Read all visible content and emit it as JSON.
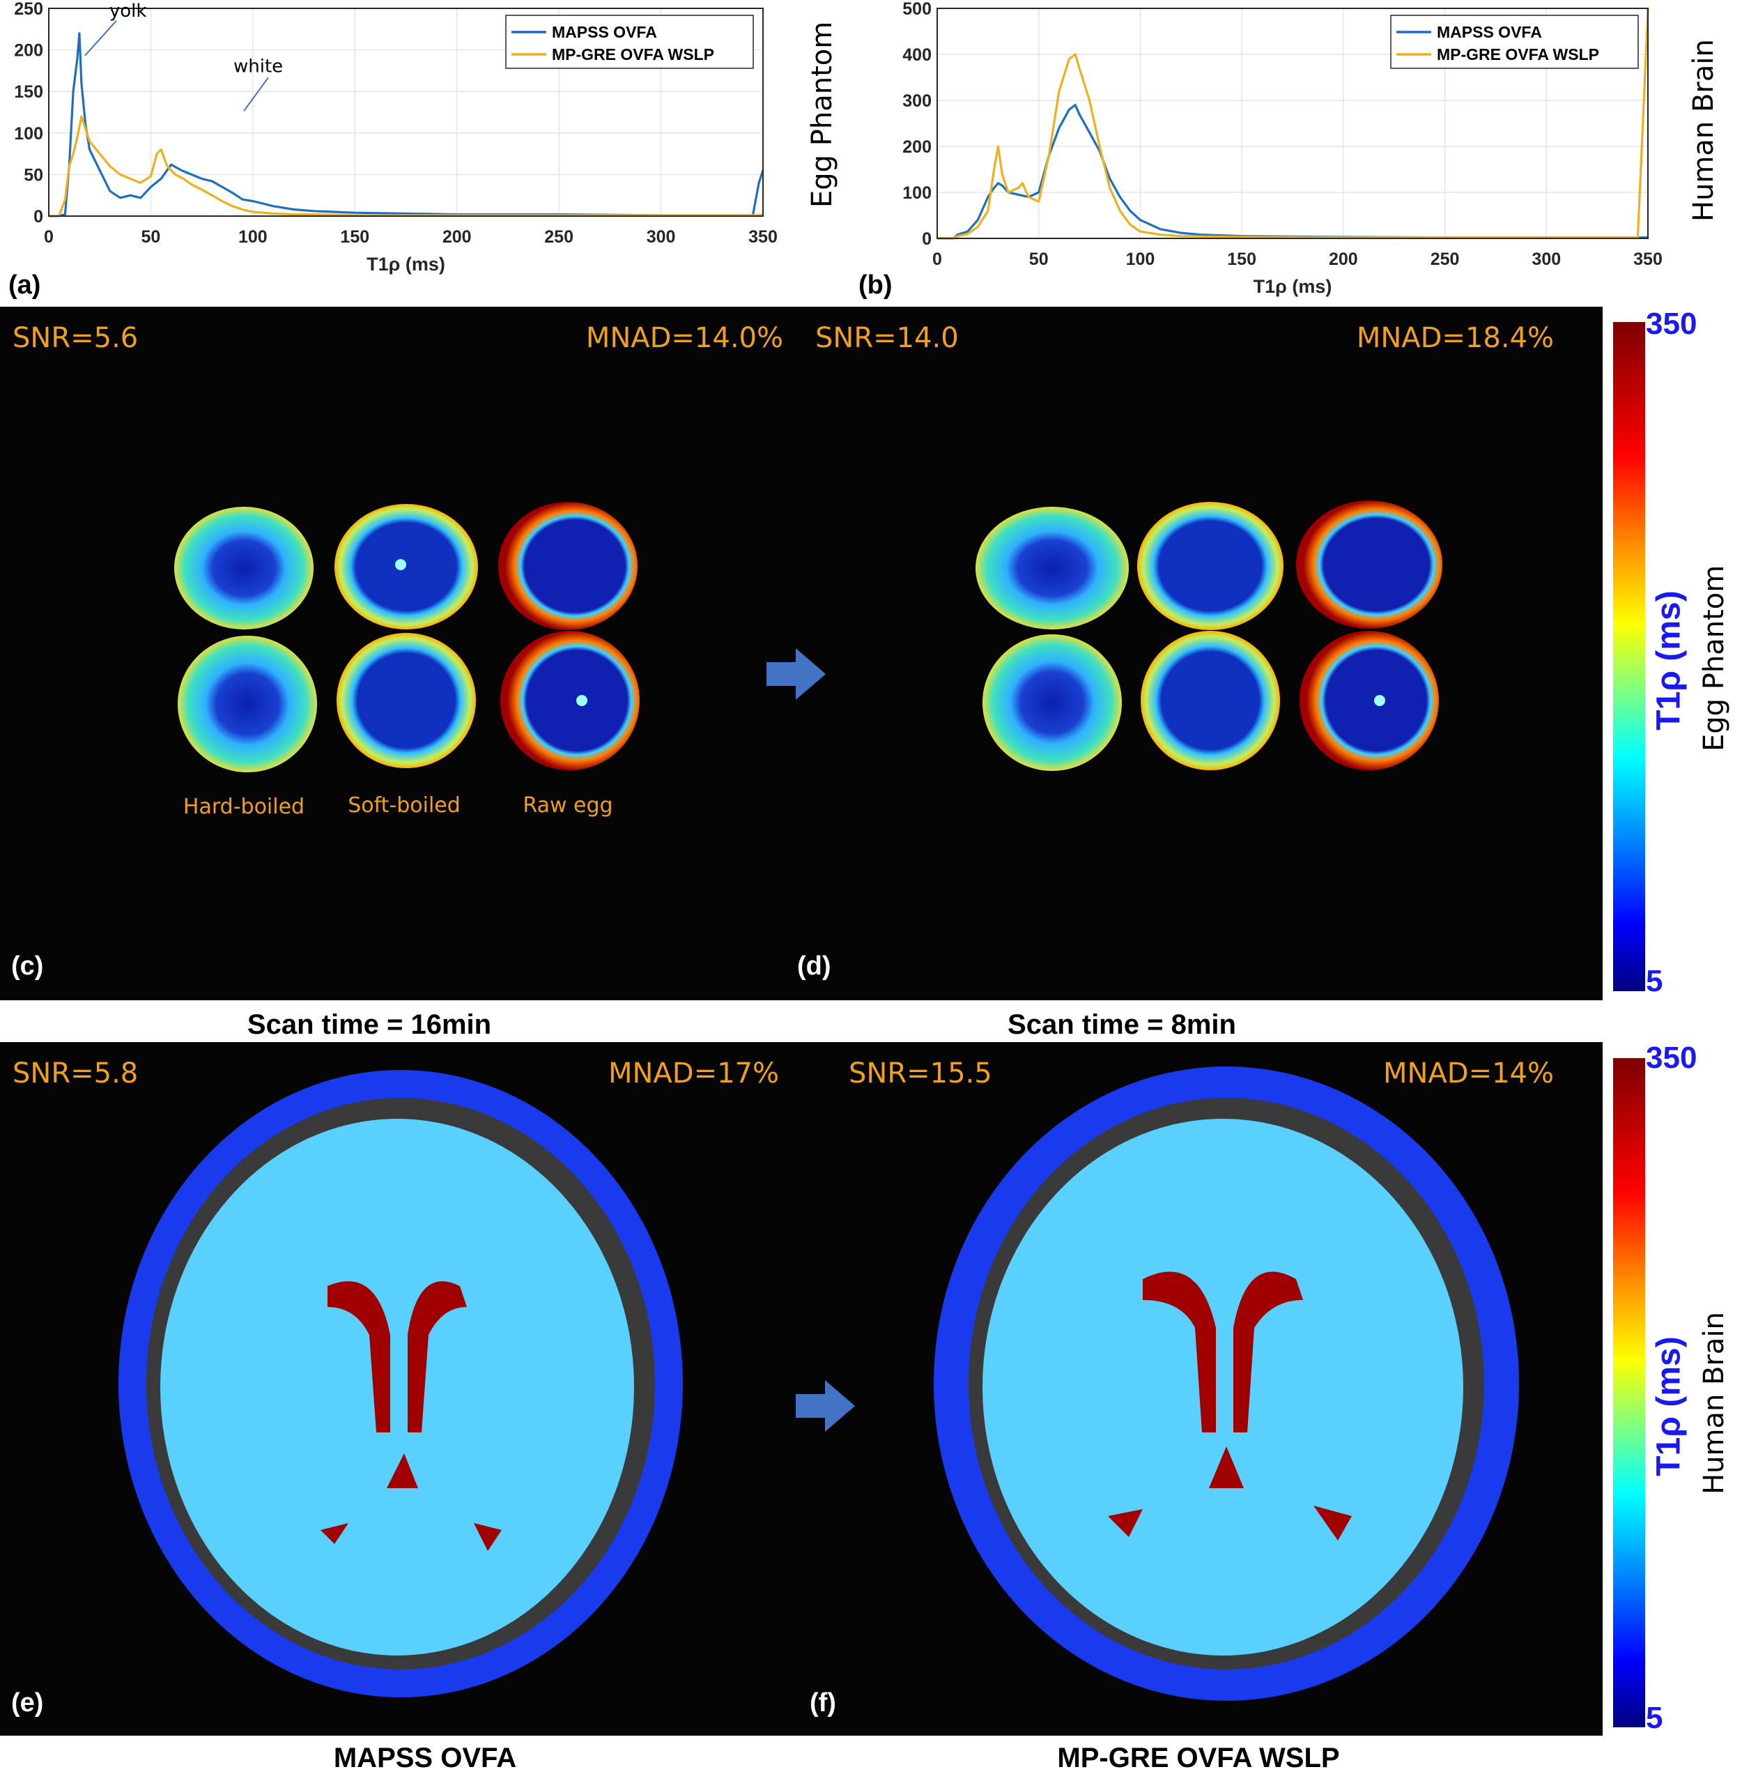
{
  "chart_data": [
    {
      "panel": "(a)",
      "type": "line",
      "xlabel": "T1ρ (ms)",
      "ylabel": "",
      "xlim": [
        0,
        350
      ],
      "ylim": [
        0,
        250
      ],
      "xticks": [
        0,
        50,
        100,
        150,
        200,
        250,
        300,
        350
      ],
      "yticks": [
        0,
        50,
        100,
        150,
        200,
        250
      ],
      "grid": true,
      "legend_position": "top-right",
      "side_label": "Egg Phantom",
      "annotations": [
        {
          "text": "yolk",
          "x": 16,
          "y": 230
        },
        {
          "text": "white",
          "x": 70,
          "y": 160
        }
      ],
      "series": [
        {
          "name": "MAPSS OVFA",
          "color": "#1f6fbf",
          "x": [
            0,
            5,
            8,
            10,
            12,
            14,
            15,
            16,
            18,
            20,
            25,
            30,
            35,
            40,
            45,
            50,
            55,
            60,
            65,
            70,
            75,
            80,
            85,
            90,
            95,
            100,
            110,
            120,
            130,
            140,
            150,
            175,
            200,
            250,
            300,
            345,
            348,
            350
          ],
          "y": [
            0,
            0,
            2,
            60,
            150,
            190,
            220,
            160,
            110,
            80,
            55,
            30,
            22,
            25,
            22,
            35,
            45,
            62,
            55,
            50,
            45,
            42,
            35,
            28,
            20,
            18,
            12,
            8,
            6,
            5,
            4,
            3,
            2,
            2,
            1,
            1,
            40,
            55
          ]
        },
        {
          "name": "MP-GRE OVFA WSLP",
          "color": "#edb120",
          "x": [
            0,
            5,
            8,
            10,
            12,
            14,
            16,
            18,
            20,
            25,
            30,
            35,
            40,
            45,
            50,
            53,
            55,
            58,
            62,
            66,
            70,
            75,
            80,
            85,
            90,
            95,
            100,
            110,
            120,
            130,
            150,
            175,
            200,
            250,
            300,
            345,
            348,
            350
          ],
          "y": [
            0,
            0,
            20,
            60,
            75,
            95,
            120,
            105,
            90,
            75,
            60,
            50,
            45,
            40,
            48,
            75,
            80,
            60,
            50,
            45,
            38,
            32,
            25,
            18,
            12,
            8,
            5,
            3,
            2,
            2,
            1,
            1,
            1,
            1,
            1,
            1,
            1,
            2
          ]
        }
      ]
    },
    {
      "panel": "(b)",
      "type": "line",
      "xlabel": "T1ρ (ms)",
      "ylabel": "",
      "xlim": [
        0,
        350
      ],
      "ylim": [
        0,
        500
      ],
      "xticks": [
        0,
        50,
        100,
        150,
        200,
        250,
        300,
        350
      ],
      "yticks": [
        0,
        100,
        200,
        300,
        400,
        500
      ],
      "grid": true,
      "legend_position": "top-right",
      "side_label": "Human Brain",
      "series": [
        {
          "name": "MAPSS OVFA",
          "color": "#1f6fbf",
          "x": [
            0,
            8,
            10,
            15,
            20,
            25,
            28,
            30,
            32,
            35,
            40,
            45,
            50,
            55,
            60,
            65,
            68,
            70,
            75,
            80,
            85,
            90,
            95,
            100,
            110,
            120,
            130,
            150,
            200,
            250,
            300,
            350
          ],
          "y": [
            0,
            0,
            8,
            15,
            40,
            90,
            110,
            120,
            115,
            100,
            95,
            90,
            100,
            180,
            240,
            280,
            290,
            270,
            230,
            190,
            130,
            90,
            60,
            40,
            20,
            12,
            8,
            5,
            3,
            2,
            2,
            2
          ]
        },
        {
          "name": "MP-GRE OVFA WSLP",
          "color": "#edb120",
          "x": [
            0,
            8,
            10,
            15,
            20,
            25,
            28,
            30,
            32,
            35,
            40,
            42,
            45,
            50,
            55,
            60,
            65,
            68,
            70,
            75,
            80,
            85,
            90,
            95,
            100,
            110,
            120,
            150,
            200,
            250,
            300,
            345,
            348,
            350
          ],
          "y": [
            0,
            0,
            5,
            10,
            25,
            60,
            150,
            200,
            140,
            100,
            110,
            120,
            90,
            80,
            180,
            320,
            390,
            400,
            370,
            300,
            200,
            110,
            60,
            30,
            15,
            8,
            5,
            3,
            2,
            2,
            2,
            2,
            300,
            500
          ]
        }
      ]
    }
  ],
  "panels": {
    "a_label": "(a)",
    "b_label": "(b)",
    "egg_side_label": "Egg Phantom",
    "brain_side_label": "Human Brain",
    "c": {
      "letter": "(c)",
      "snr": "SNR=5.6",
      "mnad": "MNAD=14.0%"
    },
    "d": {
      "letter": "(d)",
      "snr": "SNR=14.0",
      "mnad": "MNAD=18.4%"
    },
    "e": {
      "letter": "(e)",
      "snr": "SNR=5.8",
      "mnad": "MNAD=17%"
    },
    "f": {
      "letter": "(f)",
      "snr": "SNR=15.5",
      "mnad": "MNAD=14%"
    },
    "egg_names": [
      "Hard-boiled",
      "Soft-boiled",
      "Raw egg"
    ],
    "scan_time_left": "Scan time = 16min",
    "scan_time_right": "Scan time = 8min",
    "method_left": "MAPSS OVFA",
    "method_right": "MP-GRE OVFA WSLP"
  },
  "colorbar": {
    "max": "350",
    "min": "5",
    "title": "T1ρ (ms)",
    "egg_label": "Egg Phantom",
    "brain_label": "Human Brain"
  },
  "colors": {
    "series1": "#1f6fbf",
    "series2": "#edb120",
    "overlay_text": "#f0a020",
    "colorbar_text": "#1a1aee",
    "arrow": "#4472c4"
  }
}
